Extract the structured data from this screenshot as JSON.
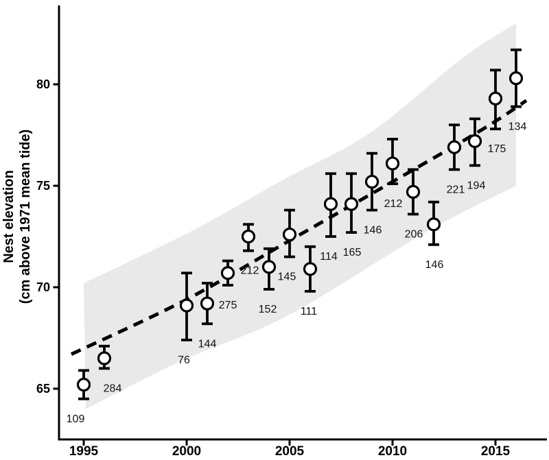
{
  "chart_data": {
    "type": "scatter",
    "title": "",
    "xlabel": "",
    "ylabel_line1": "Nest elevation",
    "ylabel_line2": "(cm above 1971 mean tide)",
    "x_ticks": [
      1995,
      2000,
      2005,
      2010,
      2015
    ],
    "y_ticks": [
      65,
      70,
      75,
      80
    ],
    "xlim": [
      1993.8,
      2017.5
    ],
    "ylim": [
      62.5,
      83.9
    ],
    "grid": false,
    "legend": false,
    "marker_style": "open-circle",
    "marker_fill": "#ffffff",
    "stroke_color": "#000000",
    "band_color": "#e9e9e9",
    "points": [
      {
        "year": 1995,
        "n": 109,
        "mean": 65.2,
        "ci_low": 64.5,
        "ci_high": 65.9,
        "label_dx": -12
      },
      {
        "year": 1996,
        "n": 284,
        "mean": 66.5,
        "ci_low": 66.0,
        "ci_high": 67.1,
        "label_dx": 12
      },
      {
        "year": 2000,
        "n": 76,
        "mean": 69.1,
        "ci_low": 67.4,
        "ci_high": 70.7,
        "label_dx": -4
      },
      {
        "year": 2001,
        "n": 144,
        "mean": 69.2,
        "ci_low": 68.2,
        "ci_high": 70.2,
        "label_dx": 0
      },
      {
        "year": 2002,
        "n": 275,
        "mean": 70.7,
        "ci_low": 70.1,
        "ci_high": 71.3,
        "label_dx": 0
      },
      {
        "year": 2003,
        "n": 212,
        "mean": 72.5,
        "ci_low": 71.8,
        "ci_high": 73.1,
        "label_dx": 2
      },
      {
        "year": 2004,
        "n": 152,
        "mean": 71.0,
        "ci_low": 69.9,
        "ci_high": 71.9,
        "label_dx": -2
      },
      {
        "year": 2005,
        "n": 145,
        "mean": 72.6,
        "ci_low": 71.5,
        "ci_high": 73.8,
        "label_dx": -4
      },
      {
        "year": 2006,
        "n": 111,
        "mean": 70.9,
        "ci_low": 69.8,
        "ci_high": 72.0,
        "label_dx": -2
      },
      {
        "year": 2007,
        "n": 114,
        "mean": 74.1,
        "ci_low": 72.5,
        "ci_high": 75.6,
        "label_dx": -3
      },
      {
        "year": 2008,
        "n": 165,
        "mean": 74.1,
        "ci_low": 72.7,
        "ci_high": 75.6,
        "label_dx": 1
      },
      {
        "year": 2009,
        "n": 146,
        "mean": 75.2,
        "ci_low": 73.8,
        "ci_high": 76.6,
        "label_dx": 1
      },
      {
        "year": 2010,
        "n": 212,
        "mean": 76.1,
        "ci_low": 75.1,
        "ci_high": 77.3,
        "label_dx": 1
      },
      {
        "year": 2011,
        "n": 206,
        "mean": 74.7,
        "ci_low": 73.6,
        "ci_high": 75.8,
        "label_dx": 1
      },
      {
        "year": 2012,
        "n": 146,
        "mean": 73.1,
        "ci_low": 72.1,
        "ci_high": 74.2,
        "label_dx": 1
      },
      {
        "year": 2013,
        "n": 221,
        "mean": 76.9,
        "ci_low": 75.8,
        "ci_high": 78.0,
        "label_dx": 2
      },
      {
        "year": 2014,
        "n": 194,
        "mean": 77.2,
        "ci_low": 76.0,
        "ci_high": 78.3,
        "label_dx": 2
      },
      {
        "year": 2015,
        "n": 175,
        "mean": 79.3,
        "ci_low": 77.8,
        "ci_high": 80.7,
        "label_dx": 2
      },
      {
        "year": 2016,
        "n": 134,
        "mean": 80.3,
        "ci_low": 78.9,
        "ci_high": 81.7,
        "label_dx": 2
      }
    ],
    "trend_line": {
      "style": "dashed",
      "points": [
        [
          1994.4,
          66.7
        ],
        [
          2000,
          69.4
        ],
        [
          2005,
          72.3
        ],
        [
          2010,
          75.2
        ],
        [
          2014.4,
          77.8
        ],
        [
          2016.5,
          79.2
        ]
      ]
    },
    "confidence_band": {
      "upper": [
        [
          1995.0,
          70.2
        ],
        [
          2000.3,
          72.8
        ],
        [
          2004.7,
          75.3
        ],
        [
          2008.9,
          77.6
        ],
        [
          2013.4,
          81.3
        ],
        [
          2016.0,
          83.0
        ]
      ],
      "lower": [
        [
          1995.1,
          64.0
        ],
        [
          1999.8,
          66.4
        ],
        [
          2004.9,
          68.6
        ],
        [
          2011.6,
          72.7
        ],
        [
          2016.0,
          75.0
        ]
      ]
    }
  }
}
